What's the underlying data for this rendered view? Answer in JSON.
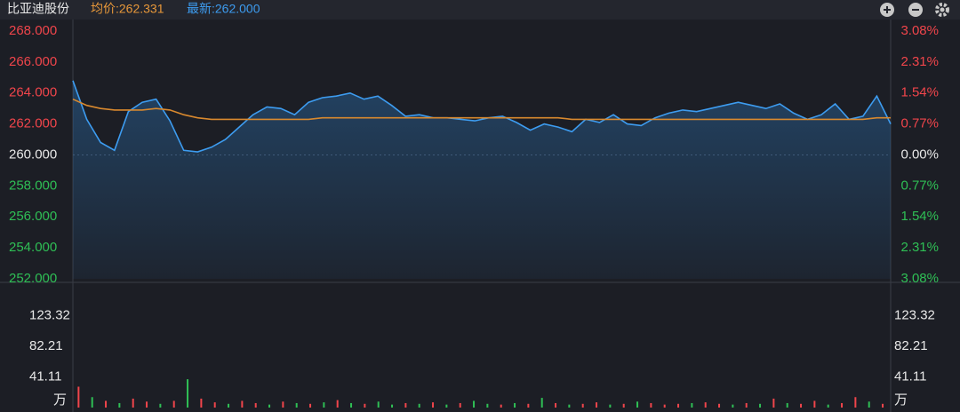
{
  "header": {
    "title": "比亚迪股份",
    "avg_label": "均价:262.331",
    "last_label": "最新:262.000"
  },
  "chart_data": [
    {
      "type": "line",
      "ylim": [
        252,
        268
      ],
      "yticks": [
        {
          "value": 268,
          "label": "268.000"
        },
        {
          "value": 266,
          "label": "266.000"
        },
        {
          "value": 264,
          "label": "264.000"
        },
        {
          "value": 262,
          "label": "262.000"
        },
        {
          "value": 260,
          "label": "260.000"
        },
        {
          "value": 258,
          "label": "258.000"
        },
        {
          "value": 256,
          "label": "256.000"
        },
        {
          "value": 254,
          "label": "254.000"
        },
        {
          "value": 252,
          "label": "252.000"
        }
      ],
      "y2lim": [
        -3.08,
        3.08
      ],
      "y2ticks": [
        {
          "value": 3.08,
          "label": "3.08%"
        },
        {
          "value": 2.31,
          "label": "2.31%"
        },
        {
          "value": 1.54,
          "label": "1.54%"
        },
        {
          "value": 0.77,
          "label": "0.77%"
        },
        {
          "value": 0,
          "label": "0.00%"
        },
        {
          "value": -0.77,
          "label": "0.77%"
        },
        {
          "value": -1.54,
          "label": "1.54%"
        },
        {
          "value": -2.31,
          "label": "2.31%"
        },
        {
          "value": -3.08,
          "label": "3.08%"
        }
      ],
      "up_color": "#f0454b",
      "down_color": "#2fbf55",
      "flat_color": "#e8e8e8",
      "series": [
        {
          "color": "#3d9cf0",
          "area": true,
          "values": [
            264.8,
            262.3,
            260.8,
            260.3,
            262.8,
            263.4,
            263.6,
            262.2,
            260.3,
            260.2,
            260.5,
            261.0,
            261.8,
            262.6,
            263.1,
            263.0,
            262.6,
            263.4,
            263.7,
            263.8,
            264.0,
            263.6,
            263.8,
            263.2,
            262.5,
            262.6,
            262.4,
            262.4,
            262.3,
            262.2,
            262.4,
            262.5,
            262.1,
            261.6,
            262.0,
            261.8,
            261.5,
            262.3,
            262.1,
            262.6,
            262.0,
            261.9,
            262.4,
            262.7,
            262.9,
            262.8,
            263.0,
            263.2,
            263.4,
            263.2,
            263.0,
            263.3,
            262.7,
            262.3,
            262.6,
            263.3,
            262.3,
            262.5,
            263.8,
            262.0
          ]
        },
        {
          "color": "#d9892e",
          "area": false,
          "values": [
            263.6,
            263.2,
            263.0,
            262.9,
            262.9,
            262.9,
            263.0,
            262.9,
            262.6,
            262.4,
            262.3,
            262.3,
            262.3,
            262.3,
            262.3,
            262.3,
            262.3,
            262.3,
            262.4,
            262.4,
            262.4,
            262.4,
            262.4,
            262.4,
            262.4,
            262.4,
            262.4,
            262.4,
            262.4,
            262.4,
            262.4,
            262.4,
            262.4,
            262.4,
            262.4,
            262.4,
            262.3,
            262.3,
            262.3,
            262.3,
            262.3,
            262.3,
            262.3,
            262.3,
            262.3,
            262.3,
            262.3,
            262.3,
            262.3,
            262.3,
            262.3,
            262.3,
            262.3,
            262.3,
            262.3,
            262.3,
            262.3,
            262.3,
            262.4,
            262.4
          ]
        }
      ]
    },
    {
      "type": "bar",
      "ylim": [
        0,
        164.44
      ],
      "yticks": [
        123.32,
        82.21,
        41.11
      ],
      "y_unit": "万",
      "values": [
        28,
        14,
        9,
        6,
        12,
        8,
        5,
        9,
        38,
        12,
        7,
        5,
        9,
        6,
        4,
        8,
        6,
        5,
        7,
        10,
        6,
        5,
        8,
        4,
        6,
        5,
        7,
        4,
        6,
        9,
        5,
        4,
        6,
        5,
        13,
        6,
        4,
        5,
        7,
        4,
        5,
        8,
        6,
        4,
        5,
        6,
        7,
        5,
        4,
        6,
        5,
        12,
        6,
        5,
        9,
        4,
        6,
        14,
        8,
        5
      ],
      "colors": [
        "#f0454b",
        "#2fbf55",
        "#f0454b",
        "#2fbf55",
        "#f0454b",
        "#f0454b",
        "#2fbf55",
        "#f0454b",
        "#2fbf55",
        "#f0454b",
        "#f0454b",
        "#2fbf55",
        "#f0454b",
        "#f0454b",
        "#2fbf55",
        "#f0454b",
        "#2fbf55",
        "#f0454b",
        "#2fbf55",
        "#f0454b",
        "#2fbf55",
        "#f0454b",
        "#2fbf55",
        "#2fbf55",
        "#f0454b",
        "#2fbf55",
        "#f0454b",
        "#2fbf55",
        "#f0454b",
        "#2fbf55",
        "#2fbf55",
        "#f0454b",
        "#2fbf55",
        "#f0454b",
        "#2fbf55",
        "#f0454b",
        "#2fbf55",
        "#f0454b",
        "#f0454b",
        "#2fbf55",
        "#f0454b",
        "#2fbf55",
        "#f0454b",
        "#f0454b",
        "#f0454b",
        "#2fbf55",
        "#f0454b",
        "#f0454b",
        "#2fbf55",
        "#f0454b",
        "#2fbf55",
        "#f0454b",
        "#2fbf55",
        "#f0454b",
        "#f0454b",
        "#2fbf55",
        "#f0454b",
        "#f0454b",
        "#2fbf55",
        "#f0454b"
      ]
    }
  ]
}
